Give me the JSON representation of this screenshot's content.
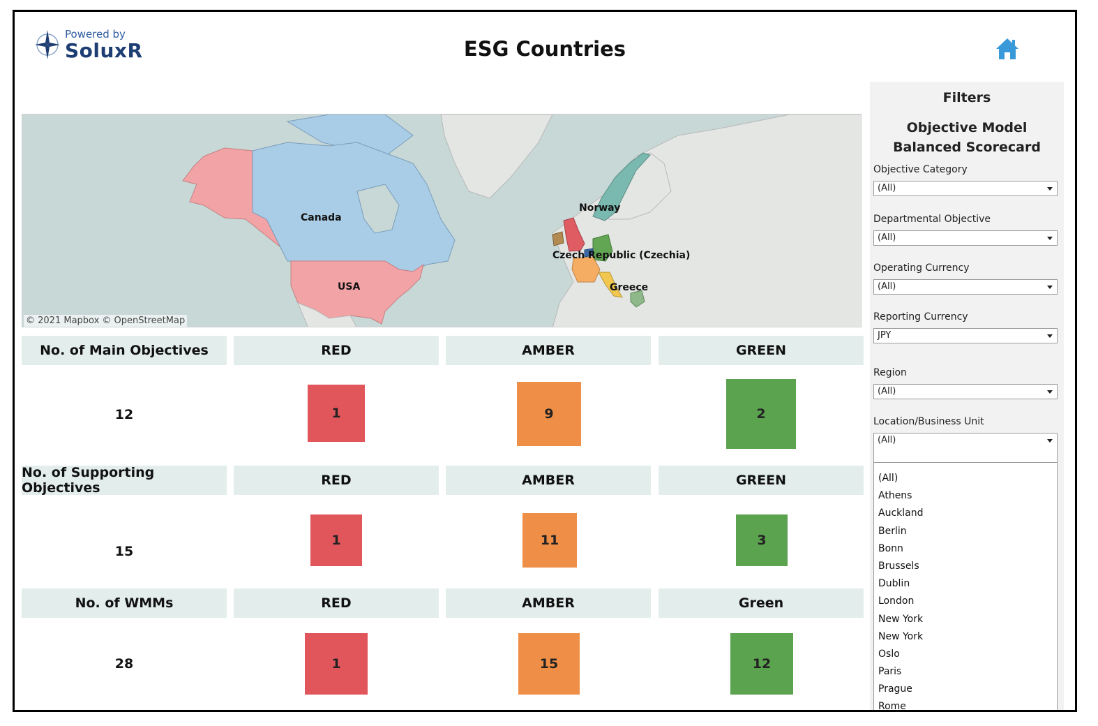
{
  "header": {
    "logo_powered": "Powered by",
    "logo_name": "SoluxR",
    "title": "ESG Countries"
  },
  "map": {
    "credit": "© 2021 Mapbox © OpenStreetMap",
    "labels": {
      "canada": "Canada",
      "usa": "USA",
      "norway": "Norway",
      "czech": "Czech Republic (Czechia)",
      "greece": "Greece"
    }
  },
  "metrics": [
    {
      "label": "No. of Main Objectives",
      "total": "12",
      "statuses": [
        {
          "label": "RED",
          "value": "1"
        },
        {
          "label": "AMBER",
          "value": "9"
        },
        {
          "label": "GREEN",
          "value": "2"
        }
      ]
    },
    {
      "label": "No. of Supporting Objectives",
      "total": "15",
      "statuses": [
        {
          "label": "RED",
          "value": "1"
        },
        {
          "label": "AMBER",
          "value": "11"
        },
        {
          "label": "GREEN",
          "value": "3"
        }
      ]
    },
    {
      "label": "No. of WMMs",
      "total": "28",
      "statuses": [
        {
          "label": "RED",
          "value": "1"
        },
        {
          "label": "AMBER",
          "value": "15"
        },
        {
          "label": "Green",
          "value": "12"
        }
      ]
    }
  ],
  "colors": {
    "red": "#e0565b",
    "amber": "#ef8f47",
    "green": "#5ba34f",
    "header_bg": "#e3eeec"
  },
  "filters": {
    "title": "Filters",
    "subtitle_line1": "Objective Model",
    "subtitle_line2": "Balanced Scorecard",
    "fields": [
      {
        "label": "Objective Category",
        "value": "(All)"
      },
      {
        "label": "Departmental Objective",
        "value": "(All)"
      },
      {
        "label": "Operating Currency",
        "value": "(All)"
      },
      {
        "label": "Reporting Currency",
        "value": "JPY"
      },
      {
        "label": "Region",
        "value": "(All)"
      },
      {
        "label": "Location/Business Unit",
        "value": "(All)"
      }
    ],
    "location_options": [
      "(All)",
      "Athens",
      "Auckland",
      "Berlin",
      "Bonn",
      "Brussels",
      "Dublin",
      "London",
      "New York",
      "New York",
      "Oslo",
      "Paris",
      "Prague",
      "Rome"
    ]
  }
}
